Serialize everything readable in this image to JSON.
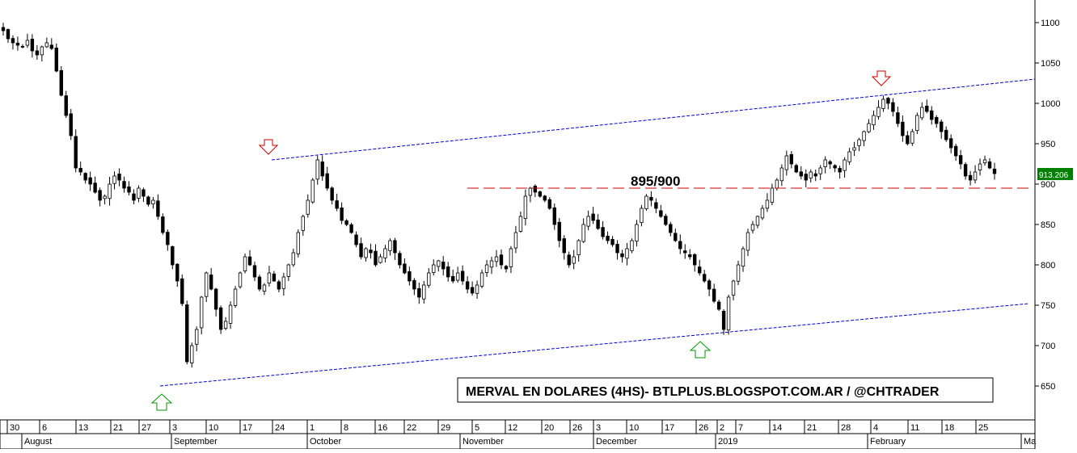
{
  "chart_data": {
    "type": "candlestick",
    "title": "MERVAL EN DOLARES (4HS)- BTLPLUS.BLOGSPOT.COM.AR / @CHTRADER",
    "ylim": [
      608,
      1128
    ],
    "y_ticks": [
      650,
      700,
      750,
      800,
      850,
      900,
      950,
      1000,
      1050,
      1100
    ],
    "x_day_ticks": [
      "30",
      "6",
      "13",
      "21",
      "27",
      "3",
      "10",
      "17",
      "24",
      "1",
      "8",
      "16",
      "22",
      "29",
      "5",
      "12",
      "20",
      "26",
      "3",
      "10",
      "17",
      "26",
      "2",
      "7",
      "14",
      "21",
      "28",
      "4",
      "11",
      "18",
      "25"
    ],
    "x_month_labels": [
      "August",
      "September",
      "October",
      "November",
      "December",
      "2019",
      "February",
      "Ma"
    ],
    "last_price": "913.206",
    "horizontal_level": {
      "label": "895/900",
      "value": 895,
      "color": "#cc0000",
      "style": "dashed"
    },
    "channel": {
      "color": "#0000cc",
      "upper": {
        "start": {
          "date": "Sep 22 2018",
          "value": 930
        },
        "end": {
          "date": "Mar 2019",
          "value": 1030
        }
      },
      "lower": {
        "start": {
          "date": "Aug 29 2018",
          "value": 650
        },
        "end": {
          "date": "Mar 2019",
          "value": 752
        }
      }
    },
    "annotations": [
      {
        "type": "arrow-down",
        "color": "#cc0000",
        "date": "Sep 22 2018",
        "value": 945
      },
      {
        "type": "arrow-up",
        "color": "#009900",
        "date": "Aug 29 2018",
        "value": 630
      },
      {
        "type": "arrow-up",
        "color": "#009900",
        "date": "Dec 26 2018",
        "value": 695
      },
      {
        "type": "arrow-down",
        "color": "#cc0000",
        "date": "Feb 4 2019",
        "value": 1030
      }
    ],
    "colors": {
      "up": "#ffffff",
      "down": "#000000",
      "outline": "#000000",
      "price_box": "#008000"
    },
    "closes_approx": [
      1090,
      1080,
      1075,
      1072,
      1070,
      1078,
      1065,
      1060,
      1070,
      1075,
      1068,
      1040,
      1010,
      985,
      960,
      920,
      915,
      905,
      900,
      890,
      880,
      885,
      900,
      910,
      905,
      895,
      890,
      880,
      895,
      885,
      875,
      880,
      860,
      840,
      825,
      800,
      780,
      752,
      680,
      700,
      720,
      760,
      790,
      770,
      745,
      720,
      730,
      750,
      770,
      790,
      810,
      800,
      785,
      770,
      775,
      790,
      780,
      770,
      785,
      800,
      815,
      840,
      860,
      880,
      905,
      930,
      910,
      895,
      880,
      870,
      855,
      850,
      840,
      825,
      810,
      820,
      815,
      800,
      810,
      820,
      830,
      815,
      800,
      790,
      780,
      770,
      760,
      775,
      790,
      800,
      805,
      795,
      785,
      780,
      790,
      780,
      770,
      765,
      775,
      790,
      800,
      805,
      810,
      800,
      795,
      820,
      840,
      860,
      885,
      895,
      890,
      885,
      880,
      870,
      850,
      830,
      815,
      800,
      810,
      830,
      850,
      860,
      855,
      845,
      835,
      830,
      825,
      815,
      810,
      820,
      830,
      850,
      870,
      885,
      880,
      870,
      860,
      850,
      840,
      830,
      820,
      815,
      810,
      800,
      790,
      780,
      770,
      755,
      745,
      720,
      760,
      780,
      800,
      820,
      840,
      850,
      860,
      870,
      880,
      895,
      905,
      920,
      935,
      925,
      915,
      910,
      905,
      915,
      910,
      920,
      930,
      925,
      920,
      915,
      930,
      940,
      945,
      955,
      965,
      975,
      985,
      995,
      1005,
      1000,
      990,
      975,
      960,
      950,
      965,
      985,
      995,
      990,
      980,
      975,
      965,
      955,
      945,
      935,
      925,
      910,
      905,
      915,
      925,
      930,
      920,
      913
    ]
  }
}
